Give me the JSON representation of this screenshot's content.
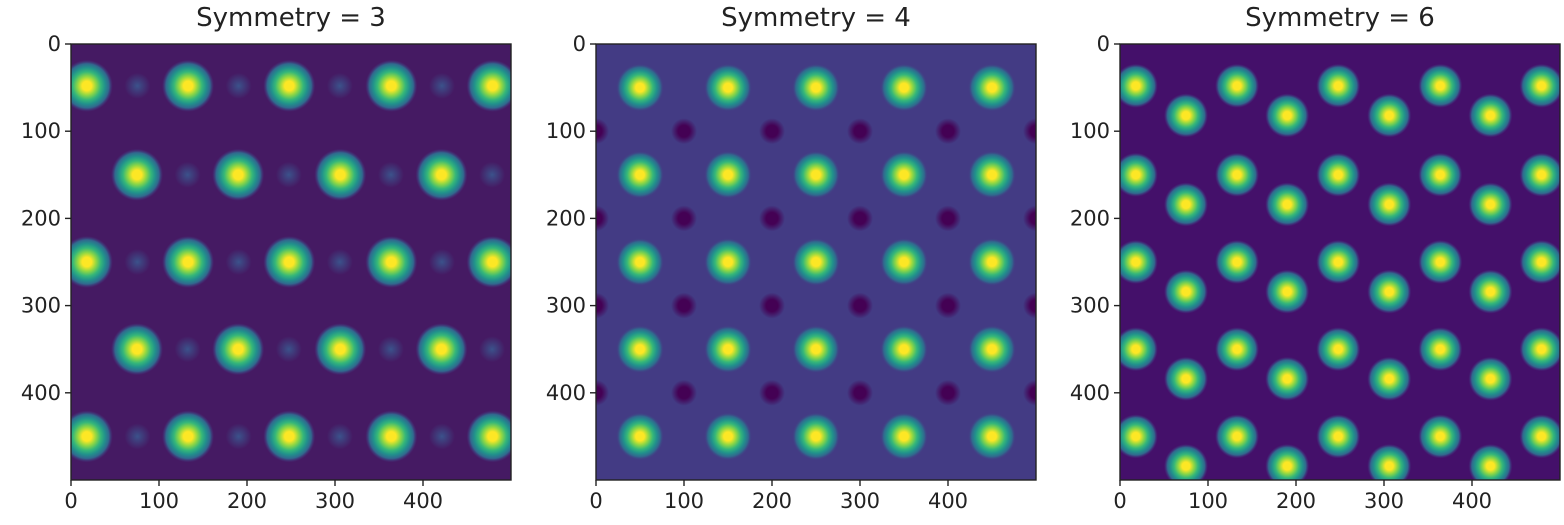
{
  "chart_data": [
    {
      "type": "heatmap",
      "title": "Symmetry = 3",
      "symmetry": 3,
      "colormap": "viridis",
      "grid": false,
      "xlim": [
        0,
        500
      ],
      "ylim": [
        500,
        0
      ],
      "xticks": [
        0,
        100,
        200,
        300,
        400
      ],
      "yticks": [
        0,
        100,
        200,
        300,
        400
      ],
      "bright_peaks": [
        [
          18,
          48
        ],
        [
          133,
          48
        ],
        [
          248,
          48
        ],
        [
          364,
          48
        ],
        [
          479,
          48
        ],
        [
          75,
          150
        ],
        [
          190,
          150
        ],
        [
          306,
          150
        ],
        [
          421,
          150
        ],
        [
          18,
          250
        ],
        [
          133,
          250
        ],
        [
          248,
          250
        ],
        [
          364,
          250
        ],
        [
          479,
          250
        ],
        [
          75,
          350
        ],
        [
          190,
          350
        ],
        [
          306,
          350
        ],
        [
          421,
          350
        ],
        [
          18,
          450
        ],
        [
          133,
          450
        ],
        [
          248,
          450
        ],
        [
          364,
          450
        ],
        [
          479,
          450
        ]
      ],
      "value_range": [
        0,
        1
      ]
    },
    {
      "type": "heatmap",
      "title": "Symmetry = 4",
      "symmetry": 4,
      "colormap": "viridis",
      "grid": false,
      "xlim": [
        0,
        500
      ],
      "ylim": [
        500,
        0
      ],
      "xticks": [
        0,
        100,
        200,
        300,
        400
      ],
      "yticks": [
        0,
        100,
        200,
        300,
        400
      ],
      "bright_peaks": [
        [
          50,
          50
        ],
        [
          150,
          50
        ],
        [
          250,
          50
        ],
        [
          350,
          50
        ],
        [
          450,
          50
        ],
        [
          50,
          150
        ],
        [
          150,
          150
        ],
        [
          250,
          150
        ],
        [
          350,
          150
        ],
        [
          450,
          150
        ],
        [
          50,
          250
        ],
        [
          150,
          250
        ],
        [
          250,
          250
        ],
        [
          350,
          250
        ],
        [
          450,
          250
        ],
        [
          50,
          350
        ],
        [
          150,
          350
        ],
        [
          250,
          350
        ],
        [
          350,
          350
        ],
        [
          450,
          350
        ],
        [
          50,
          450
        ],
        [
          150,
          450
        ],
        [
          250,
          450
        ],
        [
          350,
          450
        ],
        [
          450,
          450
        ]
      ],
      "dark_minima": [
        [
          0,
          100
        ],
        [
          100,
          100
        ],
        [
          200,
          100
        ],
        [
          300,
          100
        ],
        [
          400,
          100
        ],
        [
          500,
          100
        ],
        [
          0,
          200
        ],
        [
          100,
          200
        ],
        [
          200,
          200
        ],
        [
          300,
          200
        ],
        [
          400,
          200
        ],
        [
          500,
          200
        ],
        [
          0,
          300
        ],
        [
          100,
          300
        ],
        [
          200,
          300
        ],
        [
          300,
          300
        ],
        [
          400,
          300
        ],
        [
          500,
          300
        ],
        [
          0,
          400
        ],
        [
          100,
          400
        ],
        [
          200,
          400
        ],
        [
          300,
          400
        ],
        [
          400,
          400
        ],
        [
          500,
          400
        ]
      ],
      "value_range": [
        0,
        1
      ]
    },
    {
      "type": "heatmap",
      "title": "Symmetry = 6",
      "symmetry": 6,
      "colormap": "viridis",
      "grid": false,
      "xlim": [
        0,
        500
      ],
      "ylim": [
        500,
        0
      ],
      "xticks": [
        0,
        100,
        200,
        300,
        400
      ],
      "yticks": [
        0,
        100,
        200,
        300,
        400
      ],
      "bright_peaks": [
        [
          18,
          48
        ],
        [
          133,
          48
        ],
        [
          248,
          48
        ],
        [
          364,
          48
        ],
        [
          479,
          48
        ],
        [
          75,
          82
        ],
        [
          190,
          82
        ],
        [
          306,
          82
        ],
        [
          421,
          82
        ],
        [
          18,
          150
        ],
        [
          133,
          150
        ],
        [
          248,
          150
        ],
        [
          364,
          150
        ],
        [
          479,
          150
        ],
        [
          75,
          184
        ],
        [
          190,
          184
        ],
        [
          306,
          184
        ],
        [
          421,
          184
        ],
        [
          18,
          250
        ],
        [
          133,
          250
        ],
        [
          248,
          250
        ],
        [
          364,
          250
        ],
        [
          479,
          250
        ],
        [
          75,
          284
        ],
        [
          190,
          284
        ],
        [
          306,
          284
        ],
        [
          421,
          284
        ],
        [
          18,
          350
        ],
        [
          133,
          350
        ],
        [
          248,
          350
        ],
        [
          364,
          350
        ],
        [
          479,
          350
        ],
        [
          75,
          384
        ],
        [
          190,
          384
        ],
        [
          306,
          384
        ],
        [
          421,
          384
        ],
        [
          18,
          450
        ],
        [
          133,
          450
        ],
        [
          248,
          450
        ],
        [
          364,
          450
        ],
        [
          479,
          450
        ],
        [
          75,
          484
        ],
        [
          190,
          484
        ],
        [
          306,
          484
        ],
        [
          421,
          484
        ]
      ],
      "value_range": [
        0,
        1
      ]
    }
  ]
}
